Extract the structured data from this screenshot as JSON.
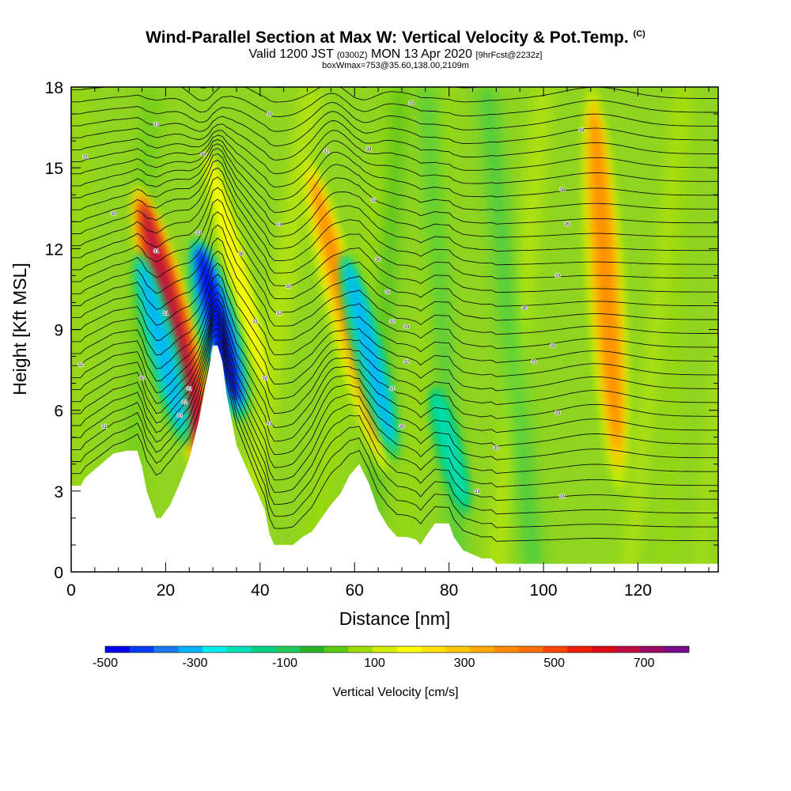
{
  "title": {
    "main": "Wind-Parallel Section at Max W: Vertical Velocity & Pot.Temp.",
    "copyright": "(C)",
    "valid_prefix": "Valid 1200 JST",
    "valid_utc": "(0300Z)",
    "valid_date": "MON 13 Apr 2020",
    "forecast": "[9hrFcst@2232z]",
    "boxline": "boxWmax=753@35.60,138.00,2109m"
  },
  "chart_data": {
    "type": "heatmap",
    "xlabel": "Distance [nm]",
    "ylabel": "Height [Kft MSL]",
    "xlim": [
      0,
      137
    ],
    "ylim": [
      0,
      18
    ],
    "x_ticks": [
      "0",
      "20",
      "40",
      "60",
      "80",
      "100",
      "120"
    ],
    "y_ticks": [
      "0",
      "3",
      "6",
      "9",
      "12",
      "15",
      "18"
    ],
    "colorbar": {
      "label": "Vertical Velocity [cm/s]",
      "tick_labels": [
        "-500",
        "-300",
        "-100",
        "100",
        "300",
        "500",
        "700"
      ],
      "range": [
        -500,
        800
      ],
      "colors": [
        "#0000ee",
        "#0a3cf5",
        "#1a78f5",
        "#00b4ff",
        "#00eeee",
        "#00e0b8",
        "#00d28a",
        "#1ec85a",
        "#28b428",
        "#5ac814",
        "#a0dc00",
        "#d2f000",
        "#ffff00",
        "#ffe000",
        "#ffc800",
        "#ffaa00",
        "#ff8c00",
        "#ff6e00",
        "#ff4600",
        "#f01e00",
        "#dc0a14",
        "#be0a3c",
        "#9b0a64",
        "#780a8c"
      ]
    },
    "updrafts": [
      {
        "x": 20,
        "y_range": [
          2.5,
          14.5
        ],
        "peak_cms": 650
      },
      {
        "x": 33,
        "y_range": [
          6,
          16
        ],
        "peak_cms": 200
      },
      {
        "x": 56,
        "y_range": [
          3.5,
          15.5
        ],
        "peak_cms": 380
      },
      {
        "x": 111,
        "y_range": [
          3,
          18
        ],
        "peak_cms": 420
      }
    ],
    "downdrafts": [
      {
        "x": 17,
        "y_range": [
          4.5,
          12
        ],
        "peak_cms": -300
      },
      {
        "x": 29,
        "y_range": [
          5.5,
          12.5
        ],
        "peak_cms": -480
      },
      {
        "x": 61,
        "y_range": [
          4,
          12
        ],
        "peak_cms": -300
      },
      {
        "x": 78,
        "y_range": [
          2,
          7
        ],
        "peak_cms": -200
      }
    ],
    "terrain": [
      [
        0,
        3.2
      ],
      [
        2,
        3.2
      ],
      [
        3,
        3.5
      ],
      [
        5,
        3.8
      ],
      [
        7,
        4.1
      ],
      [
        9,
        4.4
      ],
      [
        12,
        4.5
      ],
      [
        14,
        4.5
      ],
      [
        15,
        3.9
      ],
      [
        16,
        3.0
      ],
      [
        17,
        2.5
      ],
      [
        18,
        2.0
      ],
      [
        19,
        2.0
      ],
      [
        21,
        2.5
      ],
      [
        23,
        3.3
      ],
      [
        25,
        4.2
      ],
      [
        27,
        5.6
      ],
      [
        29,
        7.4
      ],
      [
        30,
        8.4
      ],
      [
        31,
        8.4
      ],
      [
        32,
        7.8
      ],
      [
        33,
        6.5
      ],
      [
        34,
        5.6
      ],
      [
        35,
        4.7
      ],
      [
        37,
        3.9
      ],
      [
        39,
        3.1
      ],
      [
        41,
        2.3
      ],
      [
        42,
        1.4
      ],
      [
        43,
        1.0
      ],
      [
        47,
        1.0
      ],
      [
        49,
        1.3
      ],
      [
        51,
        1.5
      ],
      [
        53,
        2.0
      ],
      [
        55,
        2.5
      ],
      [
        57,
        2.9
      ],
      [
        59,
        3.6
      ],
      [
        61,
        4.0
      ],
      [
        63,
        3.3
      ],
      [
        65,
        2.3
      ],
      [
        66,
        2.0
      ],
      [
        67,
        1.7
      ],
      [
        68,
        1.5
      ],
      [
        69,
        1.3
      ],
      [
        71,
        1.3
      ],
      [
        73,
        1.2
      ],
      [
        74,
        1.0
      ],
      [
        75,
        1.3
      ],
      [
        77,
        1.8
      ],
      [
        80,
        1.8
      ],
      [
        81,
        1.3
      ],
      [
        83,
        0.8
      ],
      [
        87,
        0.5
      ],
      [
        89,
        0.5
      ],
      [
        90,
        0.3
      ],
      [
        137,
        0.3
      ]
    ],
    "isentrope_labels": [
      {
        "x": 2,
        "y": 7.7,
        "text": "32"
      },
      {
        "x": 3,
        "y": 15.4,
        "text": "31"
      },
      {
        "x": 7,
        "y": 5.4,
        "text": "31"
      },
      {
        "x": 9,
        "y": 13.3,
        "text": "30"
      },
      {
        "x": 15,
        "y": 7.2,
        "text": "30"
      },
      {
        "x": 18,
        "y": 16.6,
        "text": "33"
      },
      {
        "x": 18,
        "y": 11.9,
        "text": "31"
      },
      {
        "x": 20,
        "y": 9.6,
        "text": "31"
      },
      {
        "x": 23,
        "y": 5.8,
        "text": "33"
      },
      {
        "x": 24,
        "y": 6.3,
        "text": "32"
      },
      {
        "x": 25,
        "y": 6.8,
        "text": "31"
      },
      {
        "x": 27,
        "y": 12.6,
        "text": "33"
      },
      {
        "x": 28,
        "y": 15.5,
        "text": "34"
      },
      {
        "x": 36,
        "y": 11.8,
        "text": "30"
      },
      {
        "x": 39,
        "y": 9.3,
        "text": "31"
      },
      {
        "x": 41,
        "y": 7.2,
        "text": "32"
      },
      {
        "x": 42,
        "y": 17.0,
        "text": "30"
      },
      {
        "x": 42,
        "y": 5.5,
        "text": "31"
      },
      {
        "x": 44,
        "y": 9.6,
        "text": "32"
      },
      {
        "x": 44,
        "y": 12.9,
        "text": "31"
      },
      {
        "x": 46,
        "y": 10.6,
        "text": "30"
      },
      {
        "x": 54,
        "y": 15.6,
        "text": "32"
      },
      {
        "x": 63,
        "y": 15.7,
        "text": "34"
      },
      {
        "x": 64,
        "y": 13.8,
        "text": "31"
      },
      {
        "x": 65,
        "y": 11.6,
        "text": "30"
      },
      {
        "x": 67,
        "y": 10.4,
        "text": "31"
      },
      {
        "x": 68,
        "y": 9.3,
        "text": "32"
      },
      {
        "x": 68,
        "y": 6.8,
        "text": "31"
      },
      {
        "x": 70,
        "y": 5.4,
        "text": "30"
      },
      {
        "x": 71,
        "y": 7.8,
        "text": "32"
      },
      {
        "x": 71,
        "y": 9.1,
        "text": "33"
      },
      {
        "x": 72,
        "y": 17.4,
        "text": "33"
      },
      {
        "x": 90,
        "y": 4.6,
        "text": "30"
      },
      {
        "x": 86,
        "y": 3.0,
        "text": "31"
      },
      {
        "x": 96,
        "y": 9.8,
        "text": "30"
      },
      {
        "x": 98,
        "y": 7.8,
        "text": "31"
      },
      {
        "x": 102,
        "y": 8.4,
        "text": "33"
      },
      {
        "x": 103,
        "y": 11.0,
        "text": "33"
      },
      {
        "x": 103,
        "y": 5.9,
        "text": "33"
      },
      {
        "x": 104,
        "y": 14.2,
        "text": "34"
      },
      {
        "x": 105,
        "y": 12.9,
        "text": "35"
      },
      {
        "x": 104,
        "y": 2.8,
        "text": "31"
      },
      {
        "x": 108,
        "y": 16.4,
        "text": "34"
      }
    ],
    "grid": false
  }
}
